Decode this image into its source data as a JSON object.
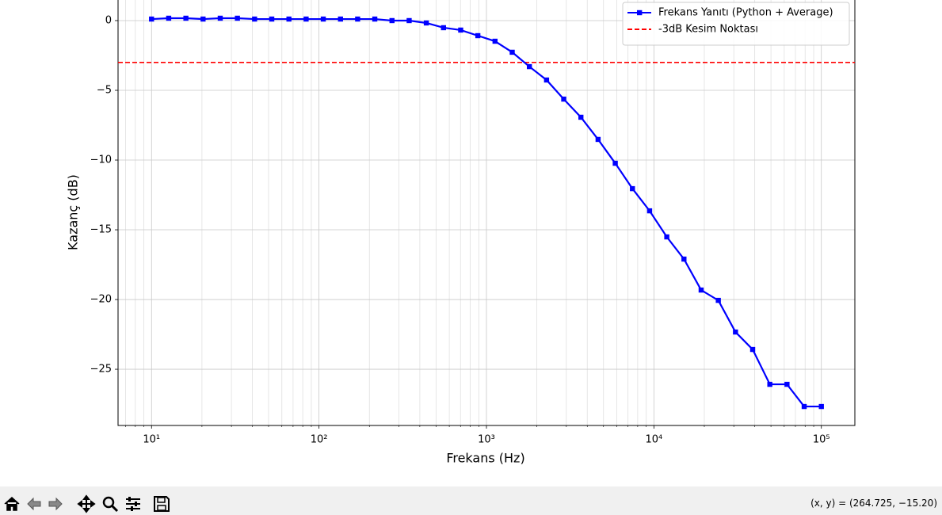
{
  "chart_data": {
    "type": "line",
    "xlabel": "Frekans (Hz)",
    "ylabel": "Kazanç (dB)",
    "x": [
      10,
      12.66,
      16.04,
      20.31,
      25.72,
      32.57,
      41.25,
      52.24,
      66.16,
      83.78,
      106.1,
      134.4,
      170.1,
      215.4,
      272.9,
      345.5,
      437.5,
      554.1,
      701.7,
      888.6,
      1125.3,
      1425.1,
      1804.8,
      2285.6,
      2894.3,
      3665.4,
      4641.6,
      5878.0,
      7443.8,
      9426.7,
      11938,
      15118,
      19145,
      24245,
      30703,
      38882,
      49239,
      62355,
      78965,
      100000
    ],
    "series": [
      {
        "name": "Frekans Yanıtı (Python + Average)",
        "color": "#0000ff",
        "marker": "square",
        "values": [
          0.11,
          0.17,
          0.17,
          0.11,
          0.17,
          0.17,
          0.11,
          0.11,
          0.11,
          0.11,
          0.11,
          0.11,
          0.11,
          0.11,
          0,
          0,
          -0.17,
          -0.51,
          -0.68,
          -1.08,
          -1.48,
          -2.27,
          -3.3,
          -4.26,
          -5.63,
          -6.93,
          -8.52,
          -10.23,
          -12.05,
          -13.64,
          -15.51,
          -17.1,
          -19.32,
          -20.06,
          -22.33,
          -23.58,
          -26.08,
          -26.08,
          -27.67,
          -27.67
        ]
      }
    ],
    "hlines": [
      {
        "y": -3,
        "name": "-3dB Kesim Noktası",
        "color": "#ff0000",
        "style": "dashed"
      }
    ],
    "xscale": "log",
    "xlim": [
      6.31,
      158489
    ],
    "ylim": [
      -29.03,
      1.59
    ],
    "xticks": [
      {
        "value": 10,
        "label": "10¹"
      },
      {
        "value": 100,
        "label": "10²"
      },
      {
        "value": 1000,
        "label": "10³"
      },
      {
        "value": 10000,
        "label": "10⁴"
      },
      {
        "value": 100000,
        "label": "10⁵"
      }
    ],
    "xminorticks": [
      7,
      8,
      9,
      20,
      30,
      40,
      50,
      60,
      70,
      80,
      90,
      200,
      300,
      400,
      500,
      600,
      700,
      800,
      900,
      2000,
      3000,
      4000,
      5000,
      6000,
      7000,
      8000,
      9000,
      20000,
      30000,
      40000,
      50000,
      60000,
      70000,
      80000,
      90000
    ],
    "yticks": [
      {
        "value": -25,
        "label": "−25"
      },
      {
        "value": -20,
        "label": "−20"
      },
      {
        "value": -15,
        "label": "−15"
      },
      {
        "value": -10,
        "label": "−10"
      },
      {
        "value": -5,
        "label": "−5"
      },
      0
    ],
    "grid": true,
    "minor_grid": true,
    "legend": "upper right"
  },
  "window": {
    "status": "(x, y) = (264.725, −15.20)"
  }
}
